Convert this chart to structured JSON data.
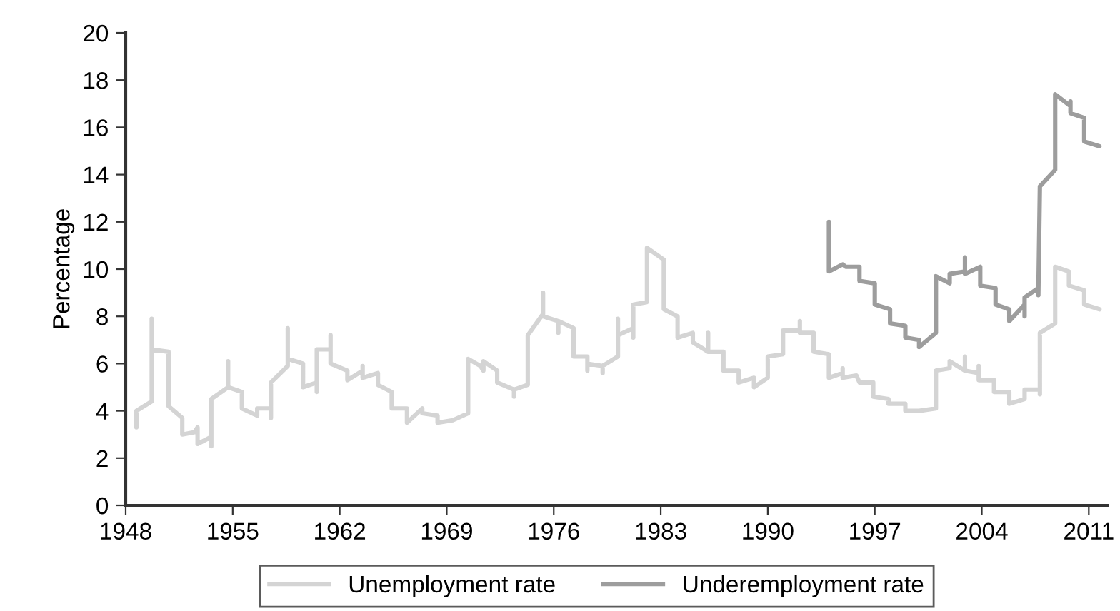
{
  "chart_data": {
    "type": "line",
    "ylabel": "Percentage",
    "xlim": [
      1948,
      2012.2
    ],
    "xticks": [
      1948,
      1955,
      1962,
      1969,
      1976,
      1983,
      1990,
      1997,
      2004,
      2011
    ],
    "ylim": [
      0,
      20
    ],
    "yticks": [
      0,
      2,
      4,
      6,
      8,
      10,
      12,
      14,
      16,
      18,
      20
    ],
    "grid": false,
    "legend": "bottom",
    "marker": "none",
    "line_style": "solid",
    "series": [
      {
        "name": "Unemployment rate",
        "color": "#d4d4d4",
        "x": [
          1948.7,
          1948.7,
          1949.7,
          1949.7,
          1949.7,
          1950.8,
          1950.8,
          1951.7,
          1951.7,
          1952.5,
          1952.7,
          1952.7,
          1953.6,
          1953.6,
          1953.6,
          1954.7,
          1954.7,
          1954.7,
          1955.6,
          1955.6,
          1956.6,
          1956.6,
          1956.6,
          1957.5,
          1957.5,
          1957.5,
          1958.6,
          1958.6,
          1958.6,
          1959.6,
          1959.6,
          1960.5,
          1960.5,
          1960.5,
          1961.4,
          1961.4,
          1961.4,
          1962.5,
          1962.5,
          1963.5,
          1963.5,
          1963.5,
          1964.5,
          1964.5,
          1964.5,
          1965.4,
          1965.4,
          1966.4,
          1966.4,
          1967.4,
          1967.4,
          1968.4,
          1968.4,
          1969.4,
          1970.4,
          1970.4,
          1971.2,
          1971.4,
          1971.4,
          1972.3,
          1972.3,
          1973.4,
          1973.4,
          1973.4,
          1974.3,
          1974.3,
          1975.3,
          1975.3,
          1975.3,
          1976.3,
          1976.3,
          1976.3,
          1977.3,
          1977.3,
          1978.2,
          1978.2,
          1978.2,
          1979.2,
          1979.2,
          1979.2,
          1980.2,
          1980.2,
          1980.2,
          1981.2,
          1981.2,
          1981.2,
          1982.1,
          1982.1,
          1983.2,
          1983.2,
          1984.1,
          1984.1,
          1985.1,
          1985.1,
          1986.1,
          1986.1,
          1986.1,
          1987.1,
          1987.1,
          1988.1,
          1988.1,
          1989.1,
          1989.1,
          1990.0,
          1990.0,
          1991.0,
          1991.0,
          1992.1,
          1992.1,
          1992.1,
          1993.0,
          1993.0,
          1994.0,
          1994.0,
          1994.9,
          1994.9,
          1994.9,
          1995.8,
          1996.0,
          1996.9,
          1996.9,
          1997.9,
          1997.9,
          1999.0,
          1999.0,
          1999.9,
          2001.0,
          2001.0,
          2001.9,
          2001.9,
          2002.9,
          2002.9,
          2002.9,
          2003.8,
          2003.8,
          2003.8,
          2004.8,
          2004.8,
          2005.8,
          2005.8,
          2006.8,
          2006.8,
          2007.8,
          2007.8,
          2007.8,
          2008.8,
          2008.8,
          2009.7,
          2009.7,
          2010.7,
          2010.7,
          2011.7
        ],
        "values": [
          3.3,
          4.0,
          4.4,
          7.9,
          6.6,
          6.5,
          4.2,
          3.7,
          3.0,
          3.1,
          3.3,
          2.6,
          2.9,
          2.5,
          4.5,
          5.0,
          6.1,
          5.0,
          4.8,
          4.1,
          3.8,
          4.1,
          4.1,
          4.1,
          3.7,
          5.2,
          5.9,
          7.5,
          6.2,
          6.0,
          5.0,
          5.2,
          4.8,
          6.6,
          6.6,
          7.2,
          6.0,
          5.7,
          5.3,
          5.7,
          5.9,
          5.4,
          5.6,
          5.1,
          5.1,
          4.8,
          4.1,
          4.1,
          3.5,
          4.1,
          3.9,
          3.8,
          3.5,
          3.6,
          3.9,
          6.2,
          5.9,
          5.7,
          6.1,
          5.7,
          5.2,
          4.9,
          4.6,
          4.9,
          5.1,
          7.2,
          8.1,
          9.0,
          8.0,
          7.8,
          7.3,
          7.8,
          7.5,
          6.3,
          6.3,
          5.7,
          6.0,
          5.9,
          5.6,
          5.9,
          6.3,
          7.9,
          7.2,
          7.5,
          7.1,
          8.5,
          8.6,
          10.9,
          10.4,
          8.3,
          8.0,
          7.1,
          7.3,
          6.9,
          6.5,
          7.3,
          6.5,
          6.5,
          5.7,
          5.7,
          5.2,
          5.4,
          5.0,
          5.4,
          6.3,
          6.4,
          7.4,
          7.4,
          7.8,
          7.3,
          7.3,
          6.5,
          6.4,
          5.4,
          5.6,
          5.8,
          5.4,
          5.5,
          5.2,
          5.2,
          4.6,
          4.5,
          4.3,
          4.3,
          4.0,
          4.0,
          4.1,
          5.7,
          5.8,
          6.1,
          5.7,
          6.3,
          5.7,
          5.6,
          5.9,
          5.3,
          5.3,
          4.8,
          4.8,
          4.3,
          4.5,
          4.9,
          4.9,
          4.7,
          7.3,
          7.7,
          10.1,
          9.9,
          9.3,
          9.1,
          8.5,
          8.3
        ]
      },
      {
        "name": "Underemployment rate",
        "color": "#9d9d9d",
        "x": [
          1994.0,
          1994.0,
          1994.9,
          1995.1,
          1996.0,
          1996.0,
          1997.0,
          1997.0,
          1998.0,
          1998.0,
          1999.0,
          1999.0,
          1999.9,
          1999.9,
          2001.0,
          2001.0,
          2001.9,
          2001.9,
          2002.9,
          2002.9,
          2002.9,
          2003.9,
          2003.9,
          2004.9,
          2004.9,
          2005.8,
          2005.8,
          2006.8,
          2006.8,
          2006.8,
          2007.7,
          2007.7,
          2007.8,
          2008.8,
          2008.8,
          2009.8,
          2009.8,
          2009.8,
          2010.7,
          2010.7,
          2011.7
        ],
        "values": [
          12.0,
          9.9,
          10.2,
          10.1,
          10.1,
          9.5,
          9.4,
          8.5,
          8.3,
          7.7,
          7.6,
          7.1,
          7.0,
          6.7,
          7.3,
          9.7,
          9.4,
          9.8,
          9.9,
          10.5,
          9.8,
          10.1,
          9.3,
          9.2,
          8.5,
          8.3,
          7.8,
          8.5,
          8.0,
          8.8,
          9.2,
          8.9,
          13.5,
          14.2,
          17.4,
          16.9,
          17.1,
          16.6,
          16.4,
          15.4,
          15.2
        ]
      }
    ]
  }
}
